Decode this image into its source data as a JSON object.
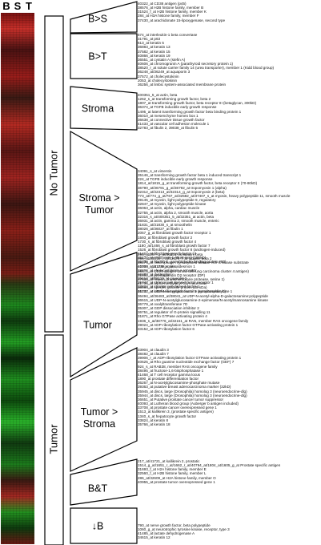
{
  "columns": [
    "B",
    "S",
    "T"
  ],
  "groups": [
    {
      "label": "No Tumor"
    },
    {
      "label": "Tumor"
    }
  ],
  "categories": [
    {
      "label": "B>S"
    },
    {
      "label": "B>T"
    },
    {
      "label": "Stroma"
    },
    {
      "label": "Stroma >\nTumor"
    },
    {
      "label": "Tumor"
    },
    {
      "label": "Tumor >\nStroma"
    },
    {
      "label": "B&T"
    },
    {
      "label": "↓B"
    }
  ],
  "gene_blocks": [
    [
      "40322_at CD38 antigen (p45)",
      "38576_at H2B histone family, member B",
      "31524_f_at H2B histone family, member K",
      "284_at H3A histone family, member F",
      "37430_at arachidonate 15-lipoxygenase, second type"
    ],
    [
      "574_at interleukin-1 beta convertase",
      "31791_at p63",
      "613_at keratin 5",
      "36883_at keratin 13",
      "37582_at keratin 15",
      "40866_at keratin 19",
      "36551_at cystatin A (stefin A)",
      "40606_at chromogranin A (parathyroid secretory protein 1)",
      "38520_r_at solute carrier family 14 (urea transporter), member 1 (Kidd blood group)",
      "36248_at/36249_at aquaporin 3",
      "37572_at cholecystokinin",
      "2053_at cholecystokinin",
      "36256_at limbic system-associated membrane protein"
    ],
    [
      "400351_5_at actin, beta",
      "1262_s_at transforming growth factor, beta 2",
      "1807_at transforming growth factor, beta receptor III (betaglycan, 300kD)",
      "36374_at TGFB inducible early growth response",
      "1495_at latent transforming growth factor beta binding protein 1",
      "36010_at mesenchyme homeo box 1",
      "36638_at connective tissue growth factor",
      "41433_at vascular cell adhesion molecule 1",
      "32783_at fibulin 2, 39038_at fibulin 5"
    ],
    [
      "34091_s_at vimentin",
      "35146_at transforming growth factor beta 1 induced transcript 1",
      "224_at TGFB inducible early growth response",
      "1814_at/1815_g_at transforming growth factor, beta receptor II (70-80kD)",
      "36790_at/36791_g_at/36792_at tropomyosin 1 (alpha)",
      "32312_at/32313_at/32314_g_at tropomyosin 2 (beta)",
      "773_at/774_g_at/767_at/32582_at/37407_s_at myosin, heavy polypeptide 11, smooth muscle",
      "39145_at myosin, light polypeptide 9, regulatory",
      "32847_at myosin, light polypeptide kinase",
      "36063_at actin, alpha, cardiac muscle",
      "32755_at actin, alpha 2, smooth muscle, aorta",
      "32316_s_at/400351_5_at/32351_at actin, beta",
      "36931_at actin, gamma 2, smooth muscle, enteric",
      "31831_at/31830_s_at smoothelin",
      "38026_at/36027_at fibulin 1",
      "2057_g_at fibroblast growth factor receptor 1",
      "1593_at fibroblast growth factor 2",
      "1730_s_at fibroblast growth factor 4",
      "1180_at/1466_s_at fibroblast growth factor 7",
      "1526_at fibroblast growth factor 8 (androgen-induced)",
      "41467_at fibroblast growth factor 18",
      "35137_at myomesin 1 (skelemin) (185kD)",
      "35336_at filamin C, gamma (actin binding protein 280)",
      "41738_at/41739_s_at caldesmon 1",
      "32696_at cholecystokinin A receptor",
      "40488_at dystrophin",
      "35612_at/36119_at caveolin 2",
      "35747_at stromal cell derived factor receptor 1",
      "33834_at stromal cell-derived factor 1",
      "36737_at insulin-like growth factor 1 (somatomedin C)"
    ],
    [
      "295_at/297_g_at/36331_at tubulin, beta",
      "956_at/33678_i_at/33679_f_at tubulin, beta 2",
      "38174_at macrophage myristoylated alanine-rich C kinase substrate",
      "40060_r_at LIM protein",
      "266_s_at CD24 antigen (small cell lung carcinoma cluster 4 antigen)",
      "31892_at prostaglandin D2 receptor (DP)",
      "37639_at hepsin (transmembrane protease, serine 1)",
      "41706_at alpha-methylacyl-CoA racemase",
      "36464_at specific granule protein (28 kDa)",
      "41242_at UDP-N-acteylglucosamine pyrophosphorylase 1",
      "36494_at/36483_at/38041_at UDP-N-acetyl-alpha-D-galactosamine:polypeptide",
      "36515_at UDP-N-acetylglucosamine-2-epimerase/N-acetylmannosamine kinase",
      "36779_at oxalyltransferase 7D",
      "35307_at GDP dissociation inhibitor 2",
      "36751_at regulator of G-protein signalling 11",
      "31871_at Rho GTPase activating protein 4",
      "1936_s_at/38776_at/32151_at RAN, member RAS oncogene family",
      "39024_at ADP-ribosylation factor GTPase activating protein 1",
      "33152_at ADP-ribosylation factor 6"
    ],
    [
      "33904_at claudin 3",
      "38482_at claudin 7",
      "39906_r_at ADP-ribosylation factor GTPase activating protein 1",
      "40625_at Rho guanine nucleotide exchange factor (GEF) 7",
      "924_s_at RAB38, member RAS oncogene family",
      "38495_at fructose-1,6-bisphosphatase 1",
      "41468_at T cell receptor gamma locus",
      "1890_at prostate differentiation factor",
      "36267_at N-acetylglucosamine-phosphate mutase",
      "39363_at putative breast adenocarcinoma marker (32kD)",
      "35945_at discs, large (Drosophila) homolog 3 (neuroendocrine-dlg)",
      "35944_at discs, large (Drosophila) homolog 3 (neuroendocrine-dlg)",
      "36651_at Putative prostate cancer tumor suppressor",
      "40093_at Lutheran blood group (Auberger b antigen included)",
      "33708_at prostate cancer overexpressed gene 1",
      "1513_at kallikrein 3, (prostate specific antigen)",
      "1340_s_at hepatocyte growth factor",
      "33824_at keratin 8",
      "35766_at keratin 18"
    ],
    [
      "217_at/41721_at kallikrein 2, prostatic",
      "1514_g_at/1651_r_at/1662_r_at/40794_at/1804_at/1605_g_at Prostate specific antigen",
      "31693_f_at H2A histone family, member E",
      "32560_f_at H2B histone family, member L",
      "286_at/32609_at H2A histone family, member O",
      "40955_at prostate tumor overexpressed gene 1"
    ],
    [
      "790_at nerve growth factor, beta polypeptide",
      "1060_g_at neurotrophic tyrosine kinase, receptor, type 3",
      "41485_at lactate dehydrogenase A",
      "34615_at keratin 12"
    ]
  ]
}
